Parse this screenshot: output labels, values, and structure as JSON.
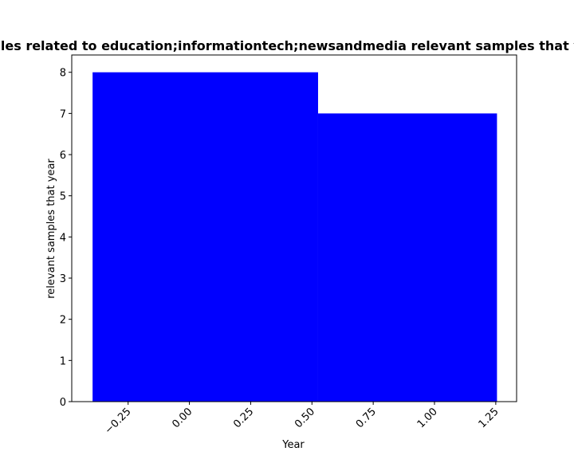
{
  "chart_data": {
    "type": "bar",
    "title": "Counts of samples related to education;informationtech;newsandmedia relevant samples that year in each year",
    "xlabel": "Year",
    "ylabel": "relevant samples that year",
    "bars": [
      {
        "x_start": -0.395,
        "x_end": 0.525,
        "value": 8
      },
      {
        "x_start": 0.525,
        "x_end": 1.255,
        "value": 7
      }
    ],
    "xlim": [
      -0.48,
      1.335
    ],
    "ylim": [
      0,
      8.42
    ],
    "xticks": [
      -0.25,
      0.0,
      0.25,
      0.5,
      0.75,
      1.0,
      1.25
    ],
    "xtick_labels": [
      "−0.25",
      "0.00",
      "0.25",
      "0.50",
      "0.75",
      "1.00",
      "1.25"
    ],
    "yticks": [
      0,
      1,
      2,
      3,
      4,
      5,
      6,
      7,
      8
    ],
    "ytick_labels": [
      "0",
      "1",
      "2",
      "3",
      "4",
      "5",
      "6",
      "7",
      "8"
    ],
    "bar_color": "#0000ff",
    "grid": false
  }
}
